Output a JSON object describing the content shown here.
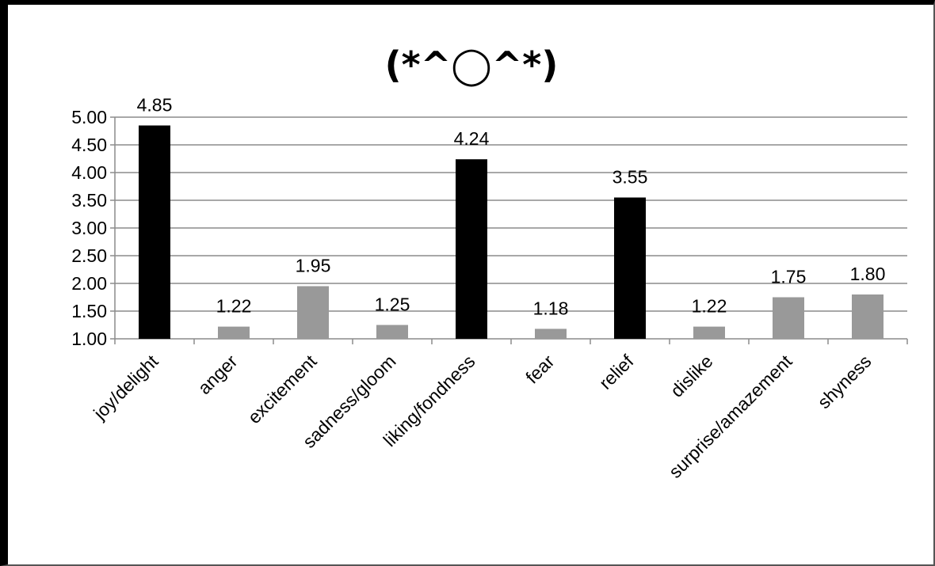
{
  "chart_data": {
    "type": "bar",
    "title": "(*^◯^*)",
    "categories": [
      "joy/delight",
      "anger",
      "excitement",
      "sadness/gloom",
      "liking/fondness",
      "fear",
      "relief",
      "dislike",
      "surprise/amazement",
      "shyness"
    ],
    "values": [
      4.85,
      1.22,
      1.95,
      1.25,
      4.24,
      1.18,
      3.55,
      1.22,
      1.75,
      1.8
    ],
    "value_labels": [
      "4.85",
      "1.22",
      "1.95",
      "1.25",
      "4.24",
      "1.18",
      "3.55",
      "1.22",
      "1.75",
      "1.80"
    ],
    "bar_colors": [
      "#000000",
      "#999999",
      "#999999",
      "#999999",
      "#000000",
      "#999999",
      "#000000",
      "#999999",
      "#999999",
      "#999999"
    ],
    "ylim": [
      1.0,
      5.0
    ],
    "yticks": [
      "1.00",
      "1.50",
      "2.00",
      "2.50",
      "3.00",
      "3.50",
      "4.00",
      "4.50",
      "5.00"
    ],
    "grid": true,
    "legend": "none",
    "xlabel": "",
    "ylabel": ""
  }
}
